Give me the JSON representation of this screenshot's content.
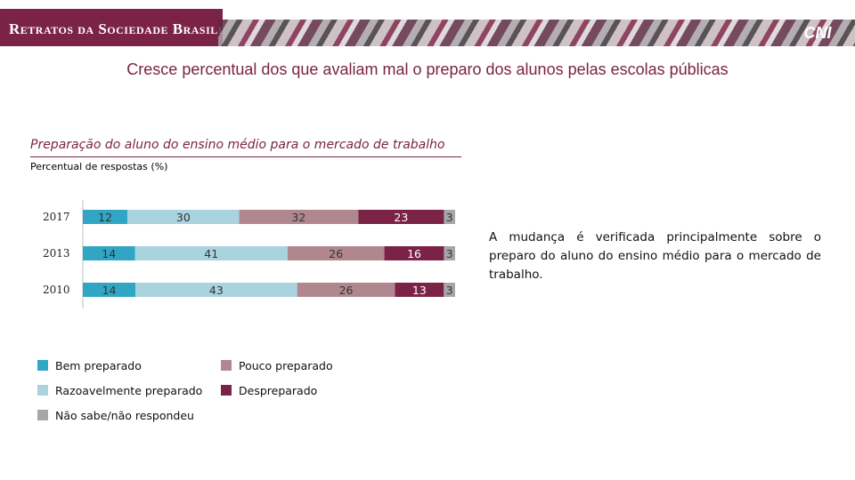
{
  "header": {
    "brand": "Retratos da Sociedade Brasileira",
    "logo": "CNI",
    "brand_color": "#7b2346"
  },
  "title": "Cresce percentual dos que avaliam mal o preparo dos alunos pelas escolas públicas",
  "subtitle": "Preparação do aluno do ensino médio para o mercado de trabalho",
  "ylabel": "Percentual de respostas (%)",
  "side_text": "A mudança é verificada principalmente sobre o preparo do aluno do ensino médio para o mercado de trabalho.",
  "chart_data": {
    "type": "bar",
    "orientation": "horizontal-stacked-100",
    "title": "Preparação do aluno do ensino médio para o mercado de trabalho",
    "ylabel": "Percentual de respostas (%)",
    "categories": [
      "2017",
      "2013",
      "2010"
    ],
    "series": [
      {
        "name": "Bem preparado",
        "color": "#31a6c4",
        "values": [
          12,
          14,
          14
        ]
      },
      {
        "name": "Razoavelmente preparado",
        "color": "#aad3e0",
        "values": [
          30,
          41,
          43
        ]
      },
      {
        "name": "Pouco preparado",
        "color": "#b0878f",
        "values": [
          32,
          26,
          26
        ]
      },
      {
        "name": "Despreparado",
        "color": "#7b2346",
        "values": [
          23,
          16,
          13
        ]
      },
      {
        "name": "Não sabe/não respondeu",
        "color": "#a6a6a6",
        "values": [
          3,
          3,
          3
        ]
      }
    ],
    "legend": [
      {
        "label": "Bem preparado",
        "color": "#31a6c4"
      },
      {
        "label": "Pouco preparado",
        "color": "#b0878f"
      },
      {
        "label": "Razoavelmente preparado",
        "color": "#aad3e0"
      },
      {
        "label": "Despreparado",
        "color": "#7b2346"
      },
      {
        "label": "Não sabe/não respondeu",
        "color": "#a6a6a6"
      }
    ],
    "legend_position": "bottom-left"
  }
}
